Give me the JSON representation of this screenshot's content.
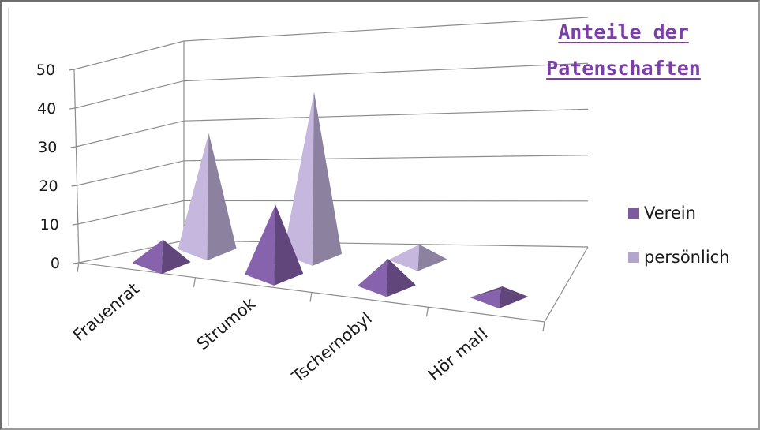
{
  "chart_data": {
    "type": "bar",
    "style": "3d-pyramid",
    "title": "Anteile der Patenschaften",
    "title_lines": [
      "Anteile der",
      "Patenschaften"
    ],
    "categories": [
      "Frauenrat",
      "Strumok",
      "Tschernobyl",
      "Hör mal!"
    ],
    "series": [
      {
        "name": "Verein",
        "values": [
          6,
          18,
          7,
          2
        ],
        "color": "#7b5a9e"
      },
      {
        "name": "persönlich",
        "values": [
          30,
          42,
          4,
          0
        ],
        "color": "#b4a6cb"
      }
    ],
    "yticks": [
      "0",
      "10",
      "20",
      "30",
      "40",
      "50"
    ],
    "ylim": [
      0,
      50
    ],
    "grid": true,
    "legend_position": "right"
  }
}
